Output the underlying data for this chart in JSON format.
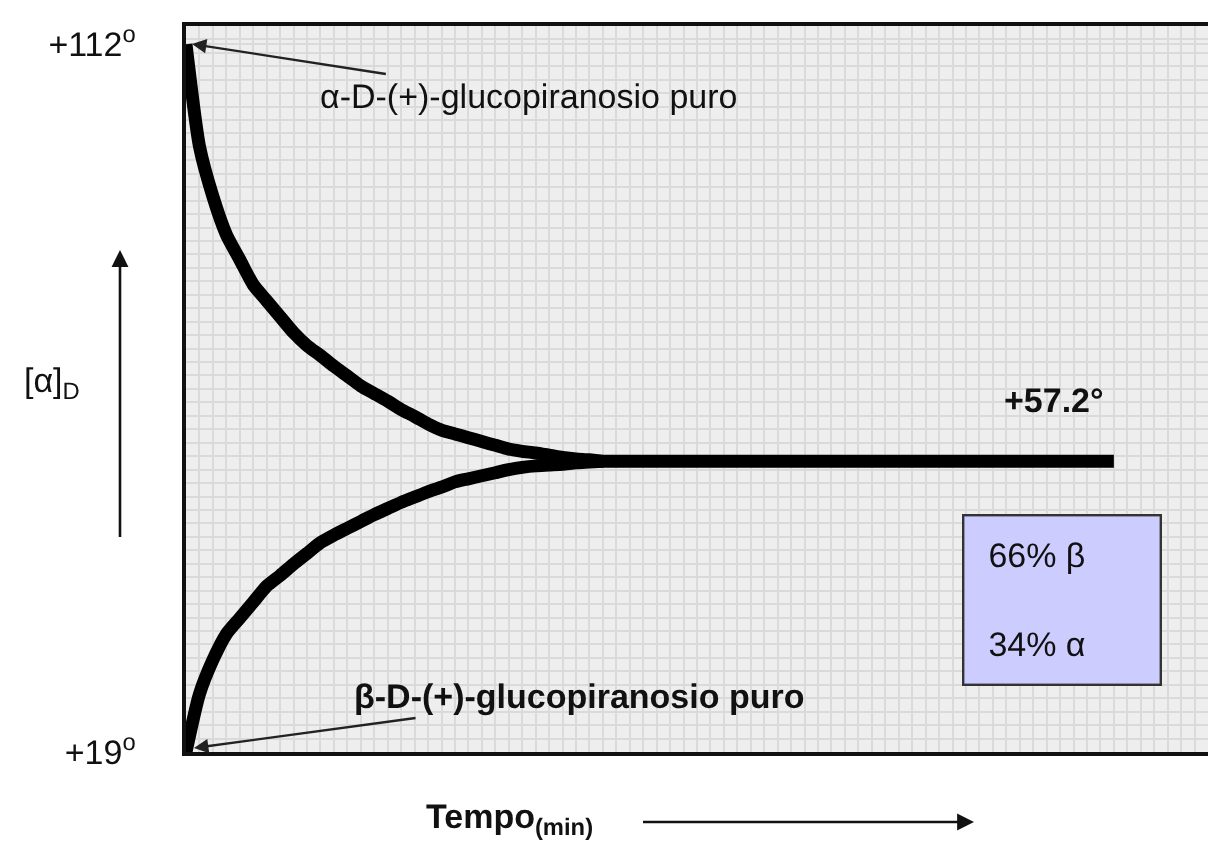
{
  "chart_data": {
    "type": "line",
    "xlabel": "Tempo$_{(min)}$",
    "ylabel": "[α]$_{D}$",
    "categories": [
      null,
      null,
      null,
      null,
      null,
      null,
      null,
      null,
      null,
      null,
      null,
      null,
      null,
      null,
      null,
      null,
      null,
      null,
      null,
      null,
      null,
      null,
      null,
      null,
      null,
      null,
      null,
      null,
      null,
      null,
      null,
      null,
      null,
      null,
      null,
      null,
      null,
      null,
      null,
      null,
      null,
      null,
      null,
      null,
      null,
      null,
      null,
      null,
      null,
      null,
      null,
      null,
      null,
      null,
      null,
      null,
      null,
      null,
      null,
      null,
      null,
      null,
      null,
      null,
      null,
      null,
      null,
      null,
      null,
      null,
      null,
      null,
      null,
      null,
      null,
      null,
      null
    ],
    "series": [
      {
        "color": "#000000",
        "values": [
          112,
          98.6,
          92.0,
          87.0,
          83.7,
          80.4,
          78.3,
          76.2,
          74.1,
          72.4,
          71.1,
          69.7,
          68.4,
          67.1,
          66.1,
          65.1,
          64.0,
          63.1,
          62.1,
          61.3,
          60.8,
          60.3,
          59.8,
          59.3,
          58.8,
          58.5,
          58.3,
          58.0,
          57.7,
          57.5,
          57.4,
          57.2,
          57.2,
          57.2,
          57.2,
          57.2,
          57.2,
          57.2,
          57.2,
          57.2,
          57.2,
          57.2,
          57.2,
          57.2,
          57.2,
          57.2,
          57.2,
          57.2,
          57.2,
          57.2,
          57.2,
          57.2,
          57.2,
          57.2,
          57.2,
          57.2,
          57.2,
          57.2,
          57.2,
          57.2,
          57.2,
          57.2,
          57.2,
          57.2,
          57.2,
          57.2,
          57.2,
          57.2,
          57.2,
          57.2,
          null,
          null,
          null,
          null,
          null,
          null,
          null
        ]
      },
      {
        "color": "#000000",
        "values": [
          19,
          26.6,
          31.1,
          34.5,
          36.6,
          38.7,
          40.8,
          42.2,
          43.7,
          45.1,
          46.5,
          47.5,
          48.4,
          49.3,
          50.2,
          51.0,
          51.8,
          52.5,
          53.2,
          53.8,
          54.5,
          54.9,
          55.3,
          55.7,
          56.1,
          56.4,
          56.6,
          56.7,
          56.8,
          57.0,
          57.1,
          57.2,
          null,
          null,
          null,
          null,
          null,
          null,
          null,
          null,
          null,
          null,
          null,
          null,
          null,
          null,
          null,
          null,
          null,
          null,
          null,
          null,
          null,
          null,
          null,
          null,
          null,
          null,
          null,
          null,
          null,
          null,
          null,
          null,
          null,
          null,
          null,
          null,
          null,
          null,
          null,
          null,
          null,
          null,
          null,
          null,
          null
        ]
      }
    ],
    "ylim": [
      19,
      114.4
    ],
    "yticks": [
      {
        "value": 112,
        "label": "+112$^{o}$"
      },
      {
        "value": 19,
        "label": "+19$^{o}$"
      }
    ],
    "grid": true,
    "tick_labels": "y",
    "annotations": [
      "α-D-(+)-glucopiranosio puro",
      "β-D-(+)-glucopiranosio puro",
      {
        "text": "+57.2°",
        "y": 57.2
      },
      "66% β\n34% α"
    ]
  }
}
